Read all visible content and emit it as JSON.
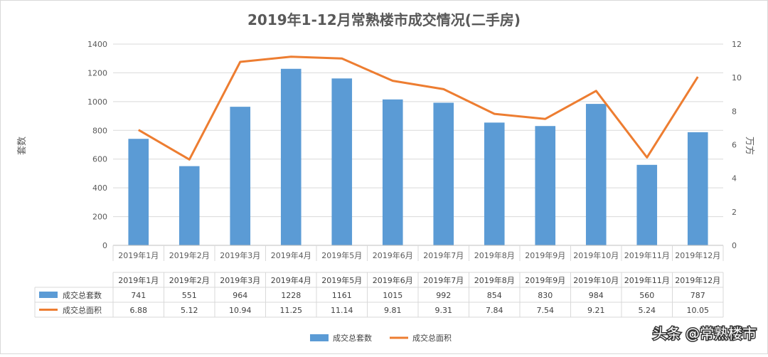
{
  "chart_data": {
    "type": "bar",
    "title": "2019年1-12月常熟楼市成交情况(二手房)",
    "categories": [
      "2019年1月",
      "2019年2月",
      "2019年3月",
      "2019年4月",
      "2019年5月",
      "2019年6月",
      "2019年7月",
      "2019年8月",
      "2019年9月",
      "2019年10月",
      "2019年11月",
      "2019年12月"
    ],
    "series": [
      {
        "name": "成交总套数",
        "type": "bar",
        "axis": "left",
        "color": "#5B9BD5",
        "values": [
          741,
          551,
          964,
          1228,
          1161,
          1015,
          992,
          854,
          830,
          984,
          560,
          787
        ]
      },
      {
        "name": "成交总面积",
        "type": "line",
        "axis": "right",
        "color": "#ED7D31",
        "values": [
          6.88,
          5.12,
          10.94,
          11.25,
          11.14,
          9.81,
          9.31,
          7.84,
          7.54,
          9.21,
          5.24,
          10.05
        ]
      }
    ],
    "ylabel": "套数",
    "y2label": "万方",
    "ylim": [
      0,
      1400
    ],
    "yticks": [
      0,
      200,
      400,
      600,
      800,
      1000,
      1200,
      1400
    ],
    "y2lim": [
      0,
      12
    ],
    "y2ticks": [
      0,
      2,
      4,
      6,
      8,
      10,
      12
    ],
    "grid": true,
    "legend": "bottom",
    "data_table": true
  },
  "watermark": "头条 @常熟楼市"
}
